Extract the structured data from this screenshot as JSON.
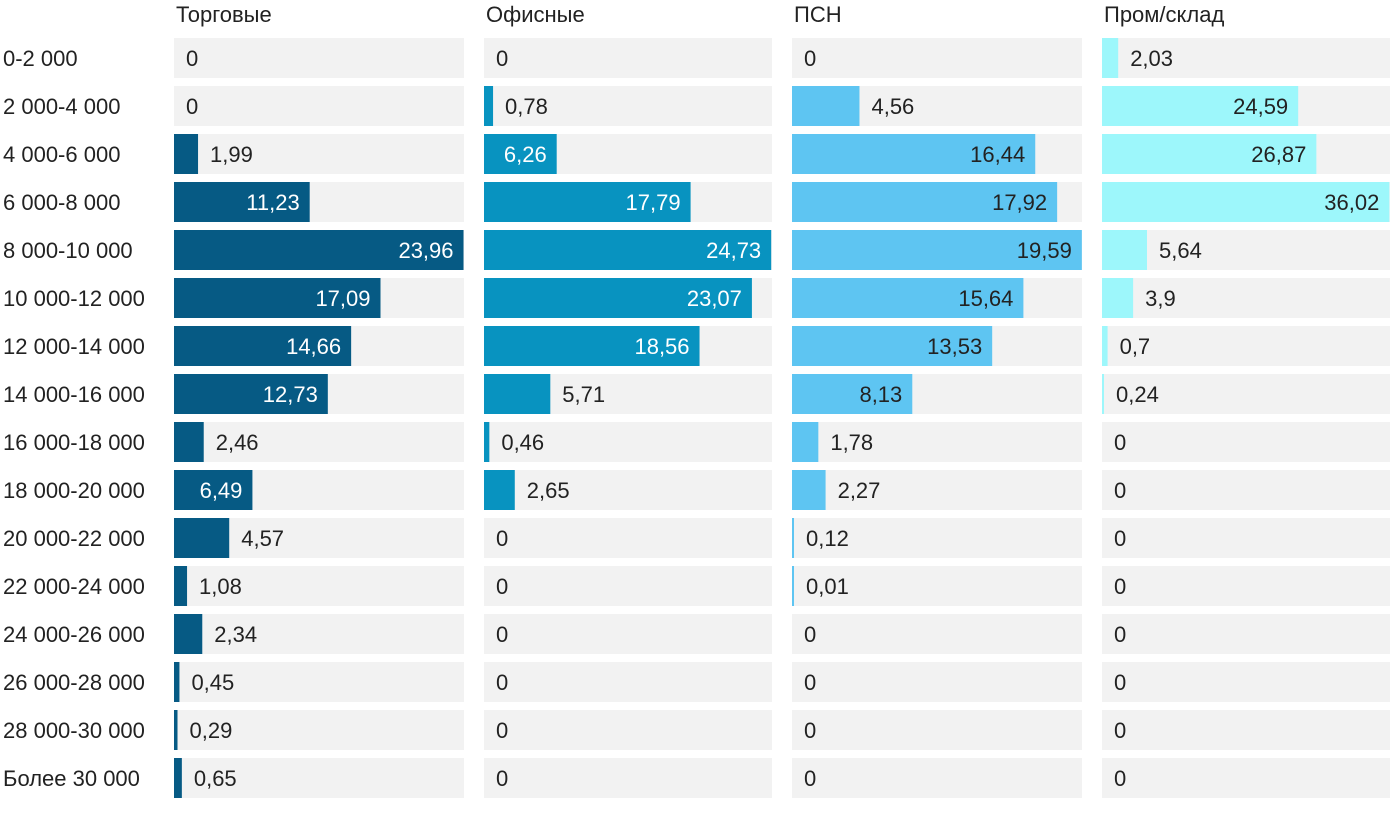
{
  "chart_data": {
    "type": "bar",
    "orientation": "horizontal",
    "layout": "small-multiples",
    "categories": [
      "0-2 000",
      "2 000-4 000",
      "4 000-6 000",
      "6 000-8 000",
      "8 000-10 000",
      "10 000-12 000",
      "12 000-14 000",
      "14 000-16 000",
      "16 000-18 000",
      "18 000-20 000",
      "20 000-22 000",
      "22 000-24 000",
      "24 000-26 000",
      "26 000-28 000",
      "28 000-30 000",
      "Более 30 000"
    ],
    "series": [
      {
        "name": "Торговые",
        "color": "#065a84",
        "xlim": [
          0,
          24
        ],
        "values": [
          0,
          0,
          1.99,
          11.23,
          23.96,
          17.09,
          14.66,
          12.73,
          2.46,
          6.49,
          4.57,
          1.08,
          2.34,
          0.45,
          0.29,
          0.65
        ],
        "labels": [
          "0",
          "0",
          "1,99",
          "11,23",
          "23,96",
          "17,09",
          "14,66",
          "12,73",
          "2,46",
          "6,49",
          "4,57",
          "1,08",
          "2,34",
          "0,45",
          "0,29",
          "0,65"
        ]
      },
      {
        "name": "Офисные",
        "color": "#0893c0",
        "xlim": [
          0,
          24.8
        ],
        "values": [
          0,
          0.78,
          6.26,
          17.79,
          24.73,
          23.07,
          18.56,
          5.71,
          0.46,
          2.65,
          0,
          0,
          0,
          0,
          0,
          0
        ],
        "labels": [
          "0",
          "0,78",
          "6,26",
          "17,79",
          "24,73",
          "23,07",
          "18,56",
          "5,71",
          "0,46",
          "2,65",
          "0",
          "0",
          "0",
          "0",
          "0",
          "0"
        ]
      },
      {
        "name": "ПСН",
        "color": "#5ec5f2",
        "xlim": [
          0,
          19.6
        ],
        "values": [
          0,
          4.56,
          16.44,
          17.92,
          19.59,
          15.64,
          13.53,
          8.13,
          1.78,
          2.27,
          0.12,
          0.01,
          0,
          0,
          0,
          0
        ],
        "labels": [
          "0",
          "4,56",
          "16,44",
          "17,92",
          "19,59",
          "15,64",
          "13,53",
          "8,13",
          "1,78",
          "2,27",
          "0,12",
          "0,01",
          "0",
          "0",
          "0",
          "0"
        ]
      },
      {
        "name": "Пром/склад",
        "color": "#9df7fb",
        "xlim": [
          0,
          36.1
        ],
        "values": [
          2.03,
          24.59,
          26.87,
          36.02,
          5.64,
          3.9,
          0.7,
          0.24,
          0,
          0,
          0,
          0,
          0,
          0,
          0,
          0
        ],
        "labels": [
          "2,03",
          "24,59",
          "26,87",
          "36,02",
          "5,64",
          "3,9",
          "0,7",
          "0,24",
          "0",
          "0",
          "0",
          "0",
          "0",
          "0",
          "0",
          "0"
        ]
      }
    ],
    "colors": {
      "track": "#f2f2f2",
      "text_dark": "#222222",
      "text_light": "#ffffff"
    }
  }
}
